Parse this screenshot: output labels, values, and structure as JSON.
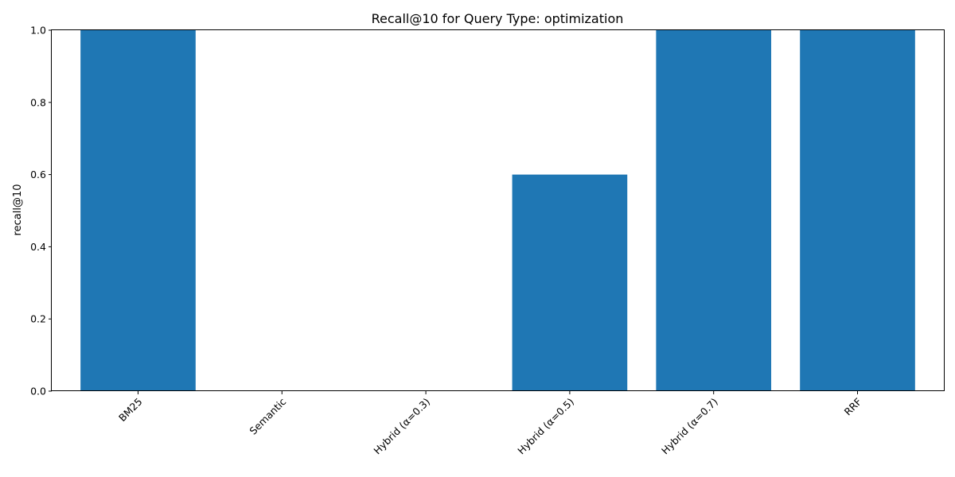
{
  "chart_data": {
    "type": "bar",
    "title": "Recall@10 for Query Type: optimization",
    "xlabel": "",
    "ylabel": "recall@10",
    "categories": [
      "BM25",
      "Semantic",
      "Hybrid (α=0.3)",
      "Hybrid (α=0.5)",
      "Hybrid (α=0.7)",
      "RRF"
    ],
    "values": [
      1.0,
      0.0,
      0.0,
      0.6,
      1.0,
      1.0
    ],
    "ylim": [
      0,
      1
    ],
    "yticks": [
      "0.0",
      "0.2",
      "0.4",
      "0.6",
      "0.8",
      "1.0"
    ],
    "grid": false,
    "bar_color": "#1f77b4"
  }
}
